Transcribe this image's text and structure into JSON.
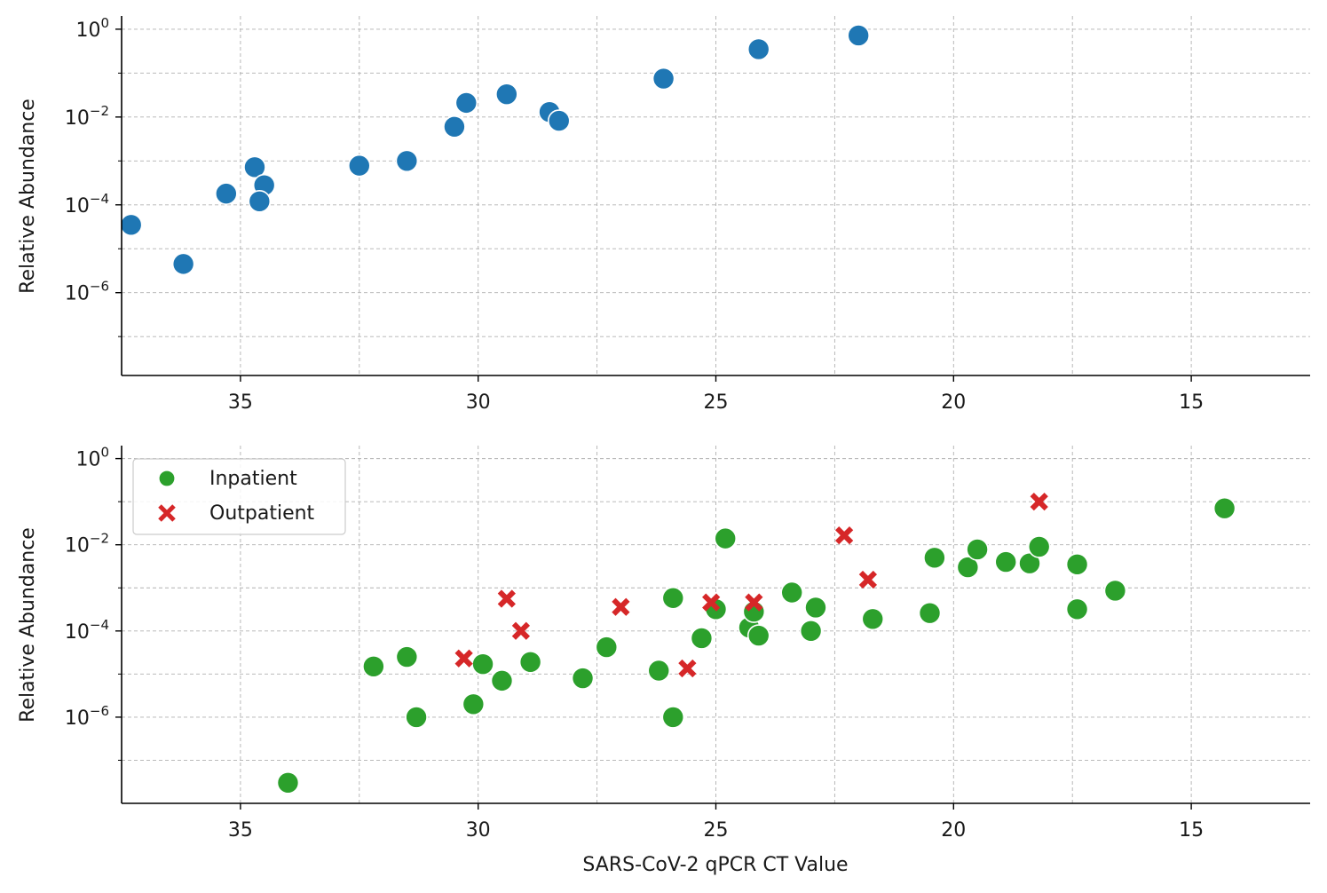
{
  "colors": {
    "top": "#1f77b4",
    "inpatient": "#2ca02c",
    "outpatient": "#d62728",
    "grid": "#b0b0b0",
    "axis": "#000000"
  },
  "chart_data": [
    {
      "type": "scatter",
      "ylabel": "Relative Abundance",
      "xlabel": "",
      "x_inverted": true,
      "xlim": [
        37.5,
        12.5
      ],
      "xticks": [
        "35",
        "30",
        "25",
        "20",
        "15"
      ],
      "ylog": true,
      "ylim": [
        1.3e-08,
        2
      ],
      "ytick_labels": [
        {
          "base": "10",
          "exp": "0"
        },
        {
          "base": "10",
          "exp": "−2"
        },
        {
          "base": "10",
          "exp": "−4"
        },
        {
          "base": "10",
          "exp": "−6"
        }
      ],
      "grid": true,
      "series": [
        {
          "marker": "circle",
          "color": "#1f77b4",
          "points": [
            [
              37.3,
              3.5e-05
            ],
            [
              36.2,
              4.5e-06
            ],
            [
              35.3,
              0.00018
            ],
            [
              34.7,
              0.00072
            ],
            [
              34.5,
              0.00028
            ],
            [
              34.6,
              0.00012
            ],
            [
              32.5,
              0.00078
            ],
            [
              31.5,
              0.001
            ],
            [
              30.5,
              0.006
            ],
            [
              30.25,
              0.021
            ],
            [
              29.4,
              0.033
            ],
            [
              28.5,
              0.013
            ],
            [
              28.3,
              0.0082
            ],
            [
              26.1,
              0.075
            ],
            [
              24.1,
              0.35
            ],
            [
              22.0,
              0.72
            ]
          ]
        }
      ]
    },
    {
      "type": "scatter",
      "ylabel": "Relative Abundance",
      "xlabel": "SARS-CoV-2 qPCR CT Value",
      "x_inverted": true,
      "xlim": [
        37.5,
        12.5
      ],
      "xticks": [
        "35",
        "30",
        "25",
        "20",
        "15"
      ],
      "ylog": true,
      "ylim": [
        1e-08,
        2
      ],
      "ytick_labels": [
        {
          "base": "10",
          "exp": "0"
        },
        {
          "base": "10",
          "exp": "−2"
        },
        {
          "base": "10",
          "exp": "−4"
        },
        {
          "base": "10",
          "exp": "−6"
        }
      ],
      "grid": true,
      "legend_position": "top-left",
      "series": [
        {
          "name": "Inpatient",
          "marker": "circle",
          "color": "#2ca02c",
          "points": [
            [
              34.0,
              3e-08
            ],
            [
              32.2,
              1.5e-05
            ],
            [
              31.5,
              2.5e-05
            ],
            [
              31.3,
              1e-06
            ],
            [
              30.1,
              2e-06
            ],
            [
              29.9,
              1.7e-05
            ],
            [
              29.5,
              7e-06
            ],
            [
              28.9,
              1.9e-05
            ],
            [
              27.8,
              8e-06
            ],
            [
              27.3,
              4.2e-05
            ],
            [
              26.2,
              1.2e-05
            ],
            [
              25.9,
              1e-06
            ],
            [
              25.9,
              0.00058
            ],
            [
              25.3,
              6.8e-05
            ],
            [
              25.0,
              0.00032
            ],
            [
              24.8,
              0.014
            ],
            [
              24.3,
              0.00012
            ],
            [
              24.2,
              0.00028
            ],
            [
              24.1,
              7.8e-05
            ],
            [
              23.4,
              0.00078
            ],
            [
              23.0,
              0.0001
            ],
            [
              22.9,
              0.00035
            ],
            [
              21.7,
              0.00019
            ],
            [
              20.5,
              0.00026
            ],
            [
              20.4,
              0.005
            ],
            [
              19.7,
              0.003
            ],
            [
              19.5,
              0.0078
            ],
            [
              18.9,
              0.004
            ],
            [
              18.4,
              0.0037
            ],
            [
              18.2,
              0.009
            ],
            [
              17.4,
              0.0035
            ],
            [
              17.4,
              0.00032
            ],
            [
              16.6,
              0.00086
            ],
            [
              14.3,
              0.07
            ]
          ]
        },
        {
          "name": "Outpatient",
          "marker": "x",
          "color": "#d62728",
          "points": [
            [
              30.3,
              2.3e-05
            ],
            [
              29.4,
              0.00056
            ],
            [
              29.1,
              0.0001
            ],
            [
              27.0,
              0.00036
            ],
            [
              25.6,
              1.35e-05
            ],
            [
              25.1,
              0.00046
            ],
            [
              24.2,
              0.00046
            ],
            [
              22.3,
              0.0165
            ],
            [
              21.8,
              0.00155
            ],
            [
              18.2,
              0.1
            ]
          ]
        }
      ]
    }
  ]
}
